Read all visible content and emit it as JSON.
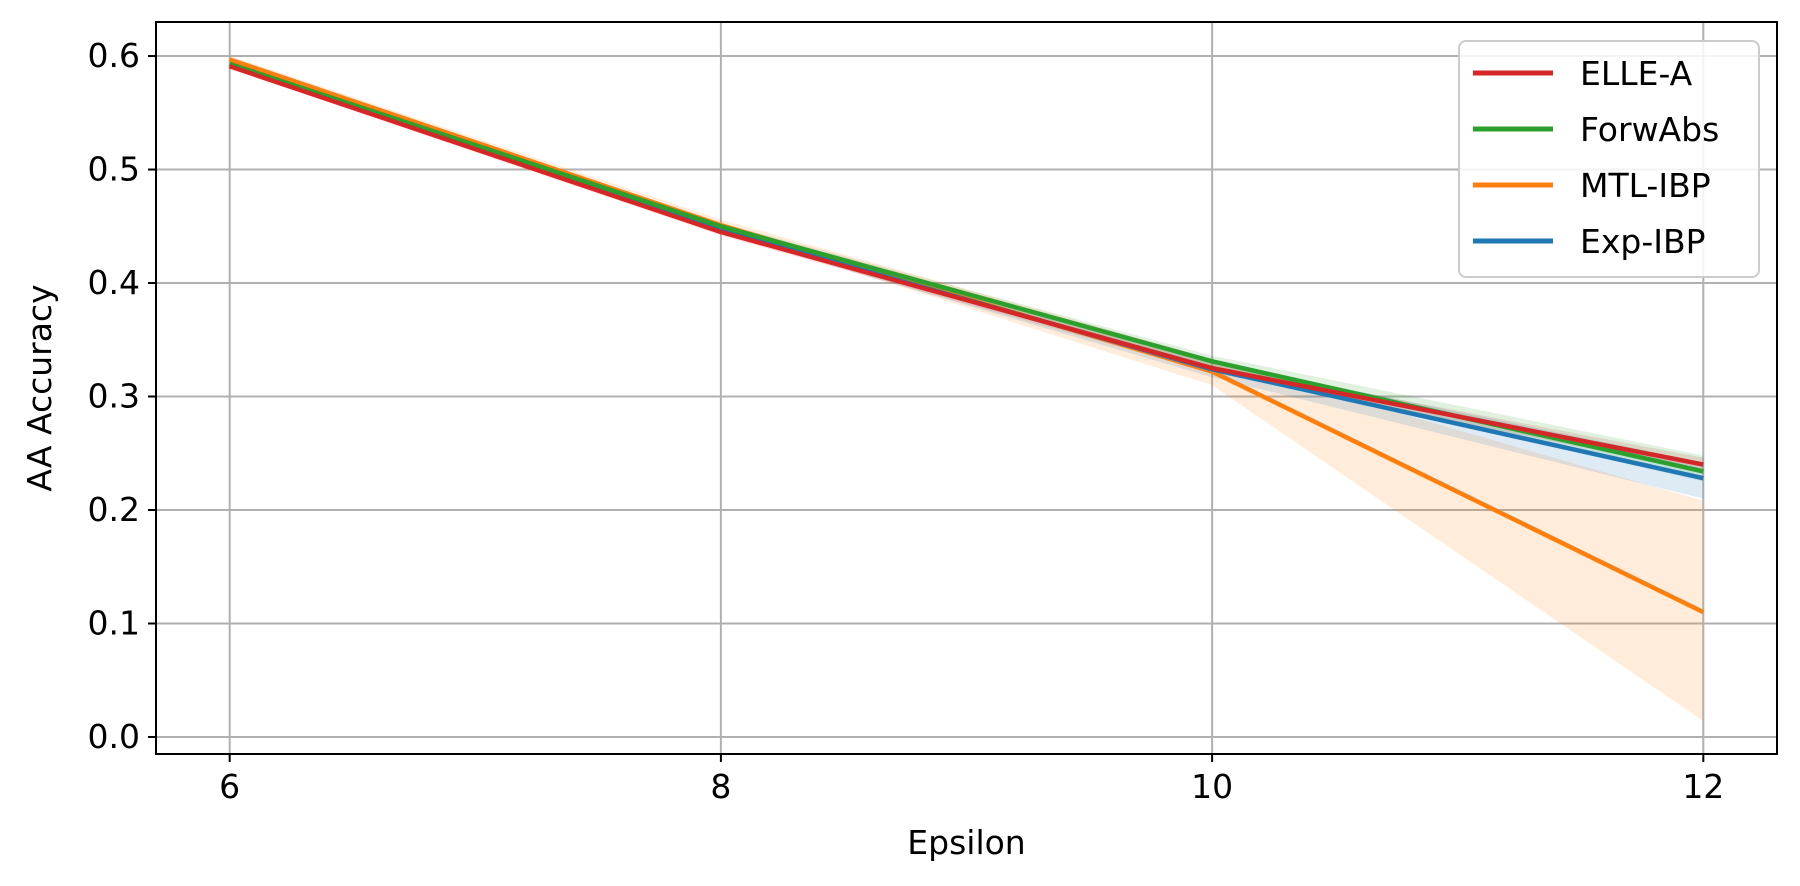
{
  "chart_data": {
    "type": "line",
    "title": "",
    "xlabel": "Epsilon",
    "ylabel": "AA Accuracy",
    "xlim": [
      5.7,
      12.3
    ],
    "ylim": [
      -0.015,
      0.63
    ],
    "xticks": [
      6,
      8,
      10,
      12
    ],
    "yticks": [
      0.0,
      0.1,
      0.2,
      0.3,
      0.4,
      0.5,
      0.6
    ],
    "ytick_labels": [
      "0.0",
      "0.1",
      "0.2",
      "0.3",
      "0.4",
      "0.5",
      "0.6"
    ],
    "grid": true,
    "legend_position": "top-right",
    "x": [
      6,
      8,
      10,
      12
    ],
    "series": [
      {
        "name": "ELLE-A",
        "color": "#d62728",
        "values": [
          0.591,
          0.445,
          0.325,
          0.24
        ],
        "lower": [
          0.589,
          0.442,
          0.321,
          0.234
        ],
        "upper": [
          0.593,
          0.448,
          0.329,
          0.246
        ]
      },
      {
        "name": "ForwAbs",
        "color": "#2ca02c",
        "values": [
          0.593,
          0.45,
          0.331,
          0.234
        ],
        "lower": [
          0.591,
          0.447,
          0.326,
          0.225
        ],
        "upper": [
          0.595,
          0.453,
          0.336,
          0.248
        ]
      },
      {
        "name": "MTL-IBP",
        "color": "#ff7f0e",
        "values": [
          0.597,
          0.451,
          0.322,
          0.11
        ],
        "lower": [
          0.594,
          0.447,
          0.31,
          0.014
        ],
        "upper": [
          0.6,
          0.456,
          0.333,
          0.208
        ]
      },
      {
        "name": "Exp-IBP",
        "color": "#1f77b4",
        "values": [
          0.593,
          0.447,
          0.324,
          0.228
        ],
        "lower": [
          0.591,
          0.444,
          0.317,
          0.21
        ],
        "upper": [
          0.595,
          0.45,
          0.331,
          0.242
        ]
      }
    ]
  }
}
